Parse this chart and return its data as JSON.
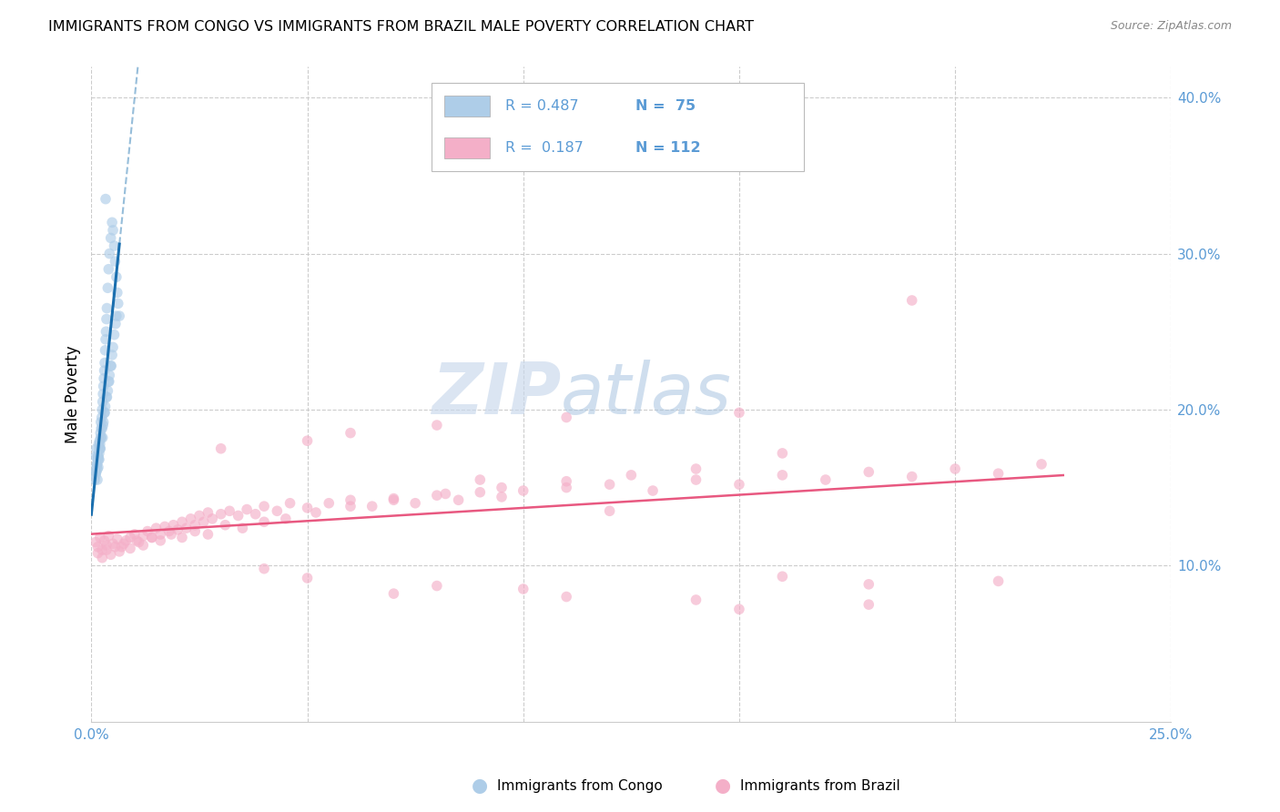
{
  "title": "IMMIGRANTS FROM CONGO VS IMMIGRANTS FROM BRAZIL MALE POVERTY CORRELATION CHART",
  "source": "Source: ZipAtlas.com",
  "ylabel": "Male Poverty",
  "x_min": 0.0,
  "x_max": 0.25,
  "y_min": 0.0,
  "y_max": 0.42,
  "right_yticks": [
    0.1,
    0.2,
    0.3,
    0.4
  ],
  "right_yticklabels": [
    "10.0%",
    "20.0%",
    "30.0%",
    "40.0%"
  ],
  "x_ticks": [
    0.0,
    0.05,
    0.1,
    0.15,
    0.2,
    0.25
  ],
  "x_ticklabels": [
    "0.0%",
    "",
    "",
    "",
    "",
    "25.0%"
  ],
  "congo_color": "#aecde8",
  "brazil_color": "#f4afc8",
  "congo_line_color": "#1a6faf",
  "brazil_line_color": "#e85880",
  "tick_color": "#5b9bd5",
  "grid_color": "#cccccc",
  "background_color": "#ffffff",
  "title_fontsize": 11.5,
  "source_fontsize": 9,
  "dot_size": 70,
  "dot_alpha": 0.65,
  "legend_r1": "R = 0.487",
  "legend_n1": "N =  75",
  "legend_r2": "R =  0.187",
  "legend_n2": "N = 112",
  "watermark_zip": "ZIP",
  "watermark_atlas": "atlas",
  "congo_x": [
    0.0008,
    0.001,
    0.0011,
    0.0012,
    0.0013,
    0.0014,
    0.0015,
    0.0016,
    0.0017,
    0.0018,
    0.0019,
    0.002,
    0.0021,
    0.0022,
    0.0023,
    0.0024,
    0.0025,
    0.0026,
    0.0027,
    0.0028,
    0.0029,
    0.003,
    0.0031,
    0.0032,
    0.0033,
    0.0034,
    0.0035,
    0.0036,
    0.0038,
    0.004,
    0.0042,
    0.0045,
    0.0048,
    0.005,
    0.0053,
    0.0055,
    0.0058,
    0.006,
    0.0062,
    0.0065,
    0.001,
    0.0012,
    0.0015,
    0.0018,
    0.002,
    0.0022,
    0.0025,
    0.0028,
    0.003,
    0.0032,
    0.0035,
    0.0038,
    0.004,
    0.0042,
    0.0045,
    0.0048,
    0.005,
    0.0053,
    0.0056,
    0.0058,
    0.0011,
    0.0013,
    0.0016,
    0.0019,
    0.0023,
    0.0027,
    0.0031,
    0.0036,
    0.0041,
    0.0046,
    0.0014,
    0.0017,
    0.0021,
    0.0026,
    0.0033
  ],
  "congo_y": [
    0.155,
    0.17,
    0.16,
    0.175,
    0.165,
    0.155,
    0.17,
    0.163,
    0.178,
    0.168,
    0.18,
    0.175,
    0.185,
    0.192,
    0.188,
    0.195,
    0.2,
    0.205,
    0.21,
    0.215,
    0.22,
    0.225,
    0.23,
    0.238,
    0.245,
    0.25,
    0.258,
    0.265,
    0.278,
    0.29,
    0.3,
    0.31,
    0.32,
    0.315,
    0.305,
    0.295,
    0.285,
    0.275,
    0.268,
    0.26,
    0.158,
    0.163,
    0.168,
    0.172,
    0.178,
    0.182,
    0.188,
    0.192,
    0.198,
    0.202,
    0.208,
    0.212,
    0.218,
    0.222,
    0.228,
    0.235,
    0.24,
    0.248,
    0.255,
    0.26,
    0.16,
    0.165,
    0.17,
    0.175,
    0.182,
    0.19,
    0.198,
    0.208,
    0.218,
    0.228,
    0.162,
    0.168,
    0.175,
    0.182,
    0.335
  ],
  "brazil_x": [
    0.001,
    0.0015,
    0.002,
    0.0025,
    0.003,
    0.0035,
    0.004,
    0.005,
    0.006,
    0.007,
    0.008,
    0.009,
    0.01,
    0.011,
    0.012,
    0.013,
    0.014,
    0.015,
    0.016,
    0.017,
    0.018,
    0.019,
    0.02,
    0.021,
    0.022,
    0.023,
    0.024,
    0.025,
    0.026,
    0.027,
    0.028,
    0.03,
    0.032,
    0.034,
    0.036,
    0.038,
    0.04,
    0.043,
    0.046,
    0.05,
    0.055,
    0.06,
    0.065,
    0.07,
    0.075,
    0.08,
    0.085,
    0.09,
    0.095,
    0.1,
    0.11,
    0.12,
    0.13,
    0.14,
    0.15,
    0.16,
    0.17,
    0.18,
    0.19,
    0.2,
    0.21,
    0.22,
    0.0015,
    0.0025,
    0.0035,
    0.0045,
    0.0055,
    0.0065,
    0.0075,
    0.009,
    0.0105,
    0.012,
    0.014,
    0.016,
    0.0185,
    0.021,
    0.024,
    0.027,
    0.031,
    0.035,
    0.04,
    0.045,
    0.052,
    0.06,
    0.07,
    0.082,
    0.095,
    0.11,
    0.125,
    0.14,
    0.16,
    0.18,
    0.03,
    0.05,
    0.08,
    0.11,
    0.15,
    0.19,
    0.06,
    0.09,
    0.12,
    0.16,
    0.21,
    0.04,
    0.07,
    0.1,
    0.14,
    0.18,
    0.05,
    0.08,
    0.11,
    0.15
  ],
  "brazil_y": [
    0.115,
    0.112,
    0.118,
    0.11,
    0.116,
    0.113,
    0.119,
    0.114,
    0.117,
    0.112,
    0.116,
    0.118,
    0.12,
    0.115,
    0.119,
    0.122,
    0.118,
    0.124,
    0.12,
    0.125,
    0.122,
    0.126,
    0.123,
    0.128,
    0.124,
    0.13,
    0.126,
    0.132,
    0.128,
    0.134,
    0.13,
    0.133,
    0.135,
    0.132,
    0.136,
    0.133,
    0.138,
    0.135,
    0.14,
    0.137,
    0.14,
    0.142,
    0.138,
    0.143,
    0.14,
    0.145,
    0.142,
    0.147,
    0.144,
    0.148,
    0.15,
    0.152,
    0.148,
    0.155,
    0.152,
    0.158,
    0.155,
    0.16,
    0.157,
    0.162,
    0.159,
    0.165,
    0.108,
    0.105,
    0.11,
    0.107,
    0.112,
    0.109,
    0.114,
    0.111,
    0.116,
    0.113,
    0.118,
    0.116,
    0.12,
    0.118,
    0.122,
    0.12,
    0.126,
    0.124,
    0.128,
    0.13,
    0.134,
    0.138,
    0.142,
    0.146,
    0.15,
    0.154,
    0.158,
    0.162,
    0.093,
    0.088,
    0.175,
    0.18,
    0.19,
    0.195,
    0.198,
    0.27,
    0.185,
    0.155,
    0.135,
    0.172,
    0.09,
    0.098,
    0.082,
    0.085,
    0.078,
    0.075,
    0.092,
    0.087,
    0.08,
    0.072
  ]
}
